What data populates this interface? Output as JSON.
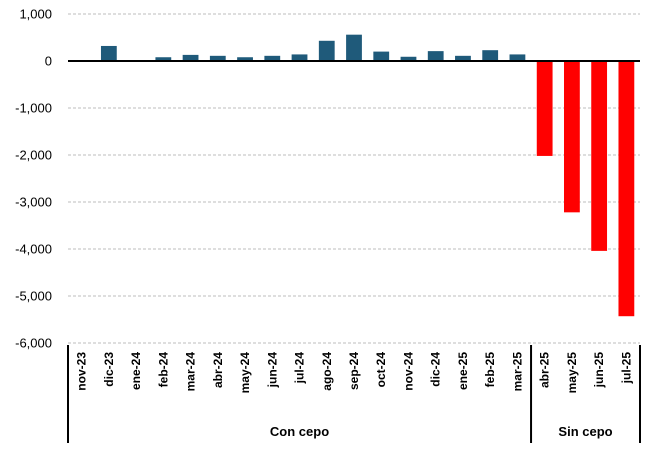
{
  "chart_data": {
    "type": "bar",
    "title": "",
    "xlabel": "",
    "ylabel": "",
    "ylim": [
      -6000,
      1000
    ],
    "yticks": [
      1000,
      0,
      -1000,
      -2000,
      -3000,
      -4000,
      -5000,
      -6000
    ],
    "ytick_labels": [
      "1,000",
      "0",
      "-1,000",
      "-2,000",
      "-3,000",
      "-4,000",
      "-5,000",
      "-6,000"
    ],
    "grid": true,
    "categories": [
      "nov-23",
      "dic-23",
      "ene-24",
      "feb-24",
      "mar-24",
      "abr-24",
      "may-24",
      "jun-24",
      "jul-24",
      "ago-24",
      "sep-24",
      "oct-24",
      "nov-24",
      "dic-24",
      "ene-25",
      "feb-25",
      "mar-25",
      "abr-25",
      "may-25",
      "jun-25",
      "jul-25"
    ],
    "values": [
      0,
      320,
      0,
      80,
      130,
      110,
      80,
      110,
      140,
      430,
      560,
      200,
      90,
      210,
      110,
      230,
      140,
      -2020,
      -3220,
      -4040,
      -5430
    ],
    "bar_colors": [
      "#1f5a7a",
      "#1f5a7a",
      "#1f5a7a",
      "#1f5a7a",
      "#1f5a7a",
      "#1f5a7a",
      "#1f5a7a",
      "#1f5a7a",
      "#1f5a7a",
      "#1f5a7a",
      "#1f5a7a",
      "#1f5a7a",
      "#1f5a7a",
      "#1f5a7a",
      "#1f5a7a",
      "#1f5a7a",
      "#1f5a7a",
      "#ff0000",
      "#ff0000",
      "#ff0000",
      "#ff0000"
    ],
    "groups": [
      {
        "label": "Con cepo",
        "start": 0,
        "end": 16
      },
      {
        "label": "Sin cepo",
        "start": 17,
        "end": 20
      }
    ]
  }
}
